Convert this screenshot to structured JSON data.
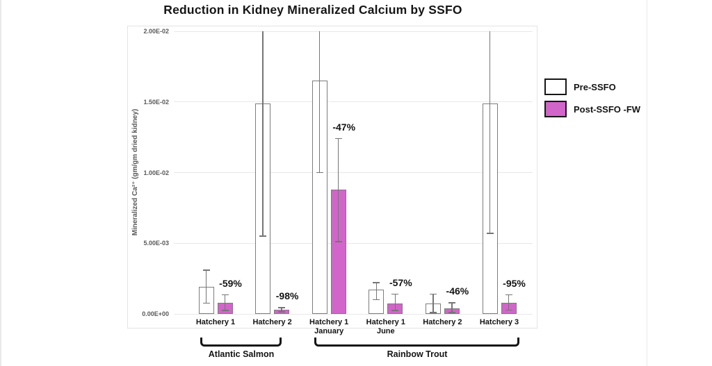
{
  "page": {
    "background": "#ffffff"
  },
  "chart_data": {
    "type": "bar",
    "title": "Reduction in Kidney Mineralized Calcium by SSFO",
    "ylabel": "Mineralized Ca²⁺ (gm/gm dried kidney)",
    "ylim": [
      0,
      0.02
    ],
    "ytick_labels": [
      "0.00E+00",
      "5.00E-03",
      "1.00E-02",
      "1.50E-02",
      "2.00E-02"
    ],
    "grid": true,
    "legend_position": "right-outside",
    "legend": [
      {
        "label": "Pre-SSFO",
        "color": "#FFFFFF"
      },
      {
        "label": "Post-SSFO -FW",
        "color": "#D165C9"
      }
    ],
    "groups": [
      {
        "name": "Atlantic Salmon",
        "bars": [
          {
            "category": "Hatchery 1",
            "pre": 0.0019,
            "pre_err": [
              0.00075,
              0.0031
            ],
            "post": 0.00079,
            "post_err": [
              0.00025,
              0.00135
            ],
            "reduction": "-59%"
          },
          {
            "category": "Hatchery 2",
            "pre": 0.0149,
            "pre_err": [
              0.0055,
              0.02
            ],
            "post": 0.0003,
            "post_err": [
              0.00015,
              0.00045
            ],
            "reduction": "-98%"
          }
        ]
      },
      {
        "name": "Rainbow Trout",
        "bars": [
          {
            "category": "Hatchery 1\nJanuary",
            "pre": 0.0165,
            "pre_err": [
              0.01,
              0.02
            ],
            "post": 0.0088,
            "post_err": [
              0.0051,
              0.0124
            ],
            "reduction": "-47%"
          },
          {
            "category": "Hatchery 1\nJune",
            "pre": 0.0017,
            "pre_err": [
              0.001,
              0.0022
            ],
            "post": 0.00074,
            "post_err": [
              0.00025,
              0.0014
            ],
            "reduction": "-57%"
          },
          {
            "category": "Hatchery 2",
            "pre": 0.00074,
            "pre_err": [
              0.0001,
              0.0014
            ],
            "post": 0.0004,
            "post_err": [
              0.0001,
              0.00079
            ],
            "reduction": "-46%"
          },
          {
            "category": "Hatchery 3",
            "pre": 0.0149,
            "pre_err": [
              0.0057,
              0.02
            ],
            "post": 0.0008,
            "post_err": [
              0.00027,
              0.00135
            ],
            "reduction": "-95%"
          }
        ]
      }
    ],
    "colors": {
      "post_bar_fill": "#D165C9",
      "bar_border": "#7c7c7c",
      "error_bar": "#757575",
      "gridline": "#e8e8e8",
      "tick_text": "#595959"
    }
  }
}
